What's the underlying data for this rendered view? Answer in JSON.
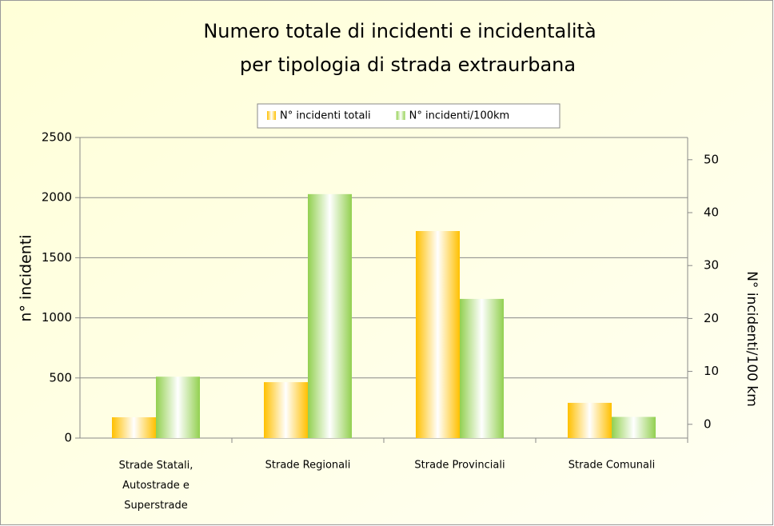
{
  "chart_data": {
    "type": "bar",
    "title": "Numero totale di incidenti e incidentalità",
    "subtitle": "per tipologia di strada extraurbana",
    "categories": [
      "Strade Statali, Autostrade e Superstrade",
      "Strade Regionali",
      "Strade Provinciali",
      "Strade Comunali"
    ],
    "series": [
      {
        "name": "N° incidenti totali",
        "color": "#ffc000",
        "values": [
          173,
          465,
          1722,
          293
        ]
      },
      {
        "name": "N° incidenti/100km",
        "color": "#92d050",
        "axis": "y2",
        "values": [
          9,
          43.5,
          23.7,
          1.4
        ]
      }
    ],
    "ylabel": "n° incidenti",
    "y2label": "N° incidenti/100 km",
    "ylim": [
      0,
      2500
    ],
    "yticks": [
      0,
      500,
      1000,
      1500,
      2000,
      2500
    ],
    "y2lim": [
      -2.6,
      54.2
    ],
    "y2ticks": [
      0,
      10,
      20,
      30,
      40,
      50
    ],
    "grid": true,
    "legend": "top"
  }
}
